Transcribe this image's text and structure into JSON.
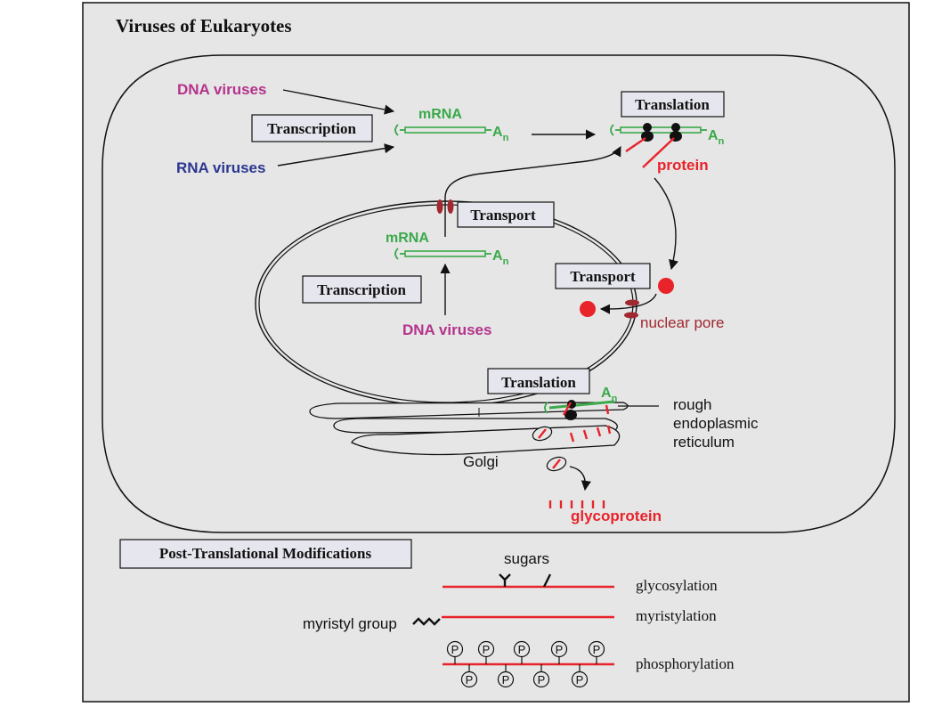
{
  "title": "Viruses of Eukaryotes",
  "cytoplasm": {
    "dna_viruses": "DNA viruses",
    "rna_viruses": "RNA viruses",
    "transcription": "Transcription",
    "mrna": "mRNA",
    "poly_a": "A",
    "poly_a_sub": "n",
    "translation": "Translation",
    "protein": "protein"
  },
  "nucleus": {
    "transport_top": "Transport",
    "mrna": "mRNA",
    "poly_a": "A",
    "poly_a_sub": "n",
    "transcription": "Transcription",
    "dna_viruses": "DNA viruses",
    "transport_right": "Transport",
    "nuclear_pore": "nuclear pore"
  },
  "er": {
    "translation": "Translation",
    "poly_a": "A",
    "poly_a_sub": "n",
    "rough_er_line1": "rough",
    "rough_er_line2": "endoplasmic",
    "rough_er_line3": "reticulum",
    "golgi": "Golgi",
    "glycoprotein": "glycoprotein"
  },
  "ptm": {
    "header": "Post-Translational Modifications",
    "sugars": "sugars",
    "glycosylation": "glycosylation",
    "myristyl_group": "myristyl group",
    "myristylation": "myristylation",
    "phosphorylation": "phosphorylation",
    "p_symbol": "P"
  },
  "colors": {
    "panel_bg": "#e6e6e6",
    "magenta": "#b4338c",
    "blue": "#2b3690",
    "green": "#3aa94a",
    "red": "#e8232a",
    "darkred": "#a0282e",
    "box_fill": "#e6e6ee"
  }
}
